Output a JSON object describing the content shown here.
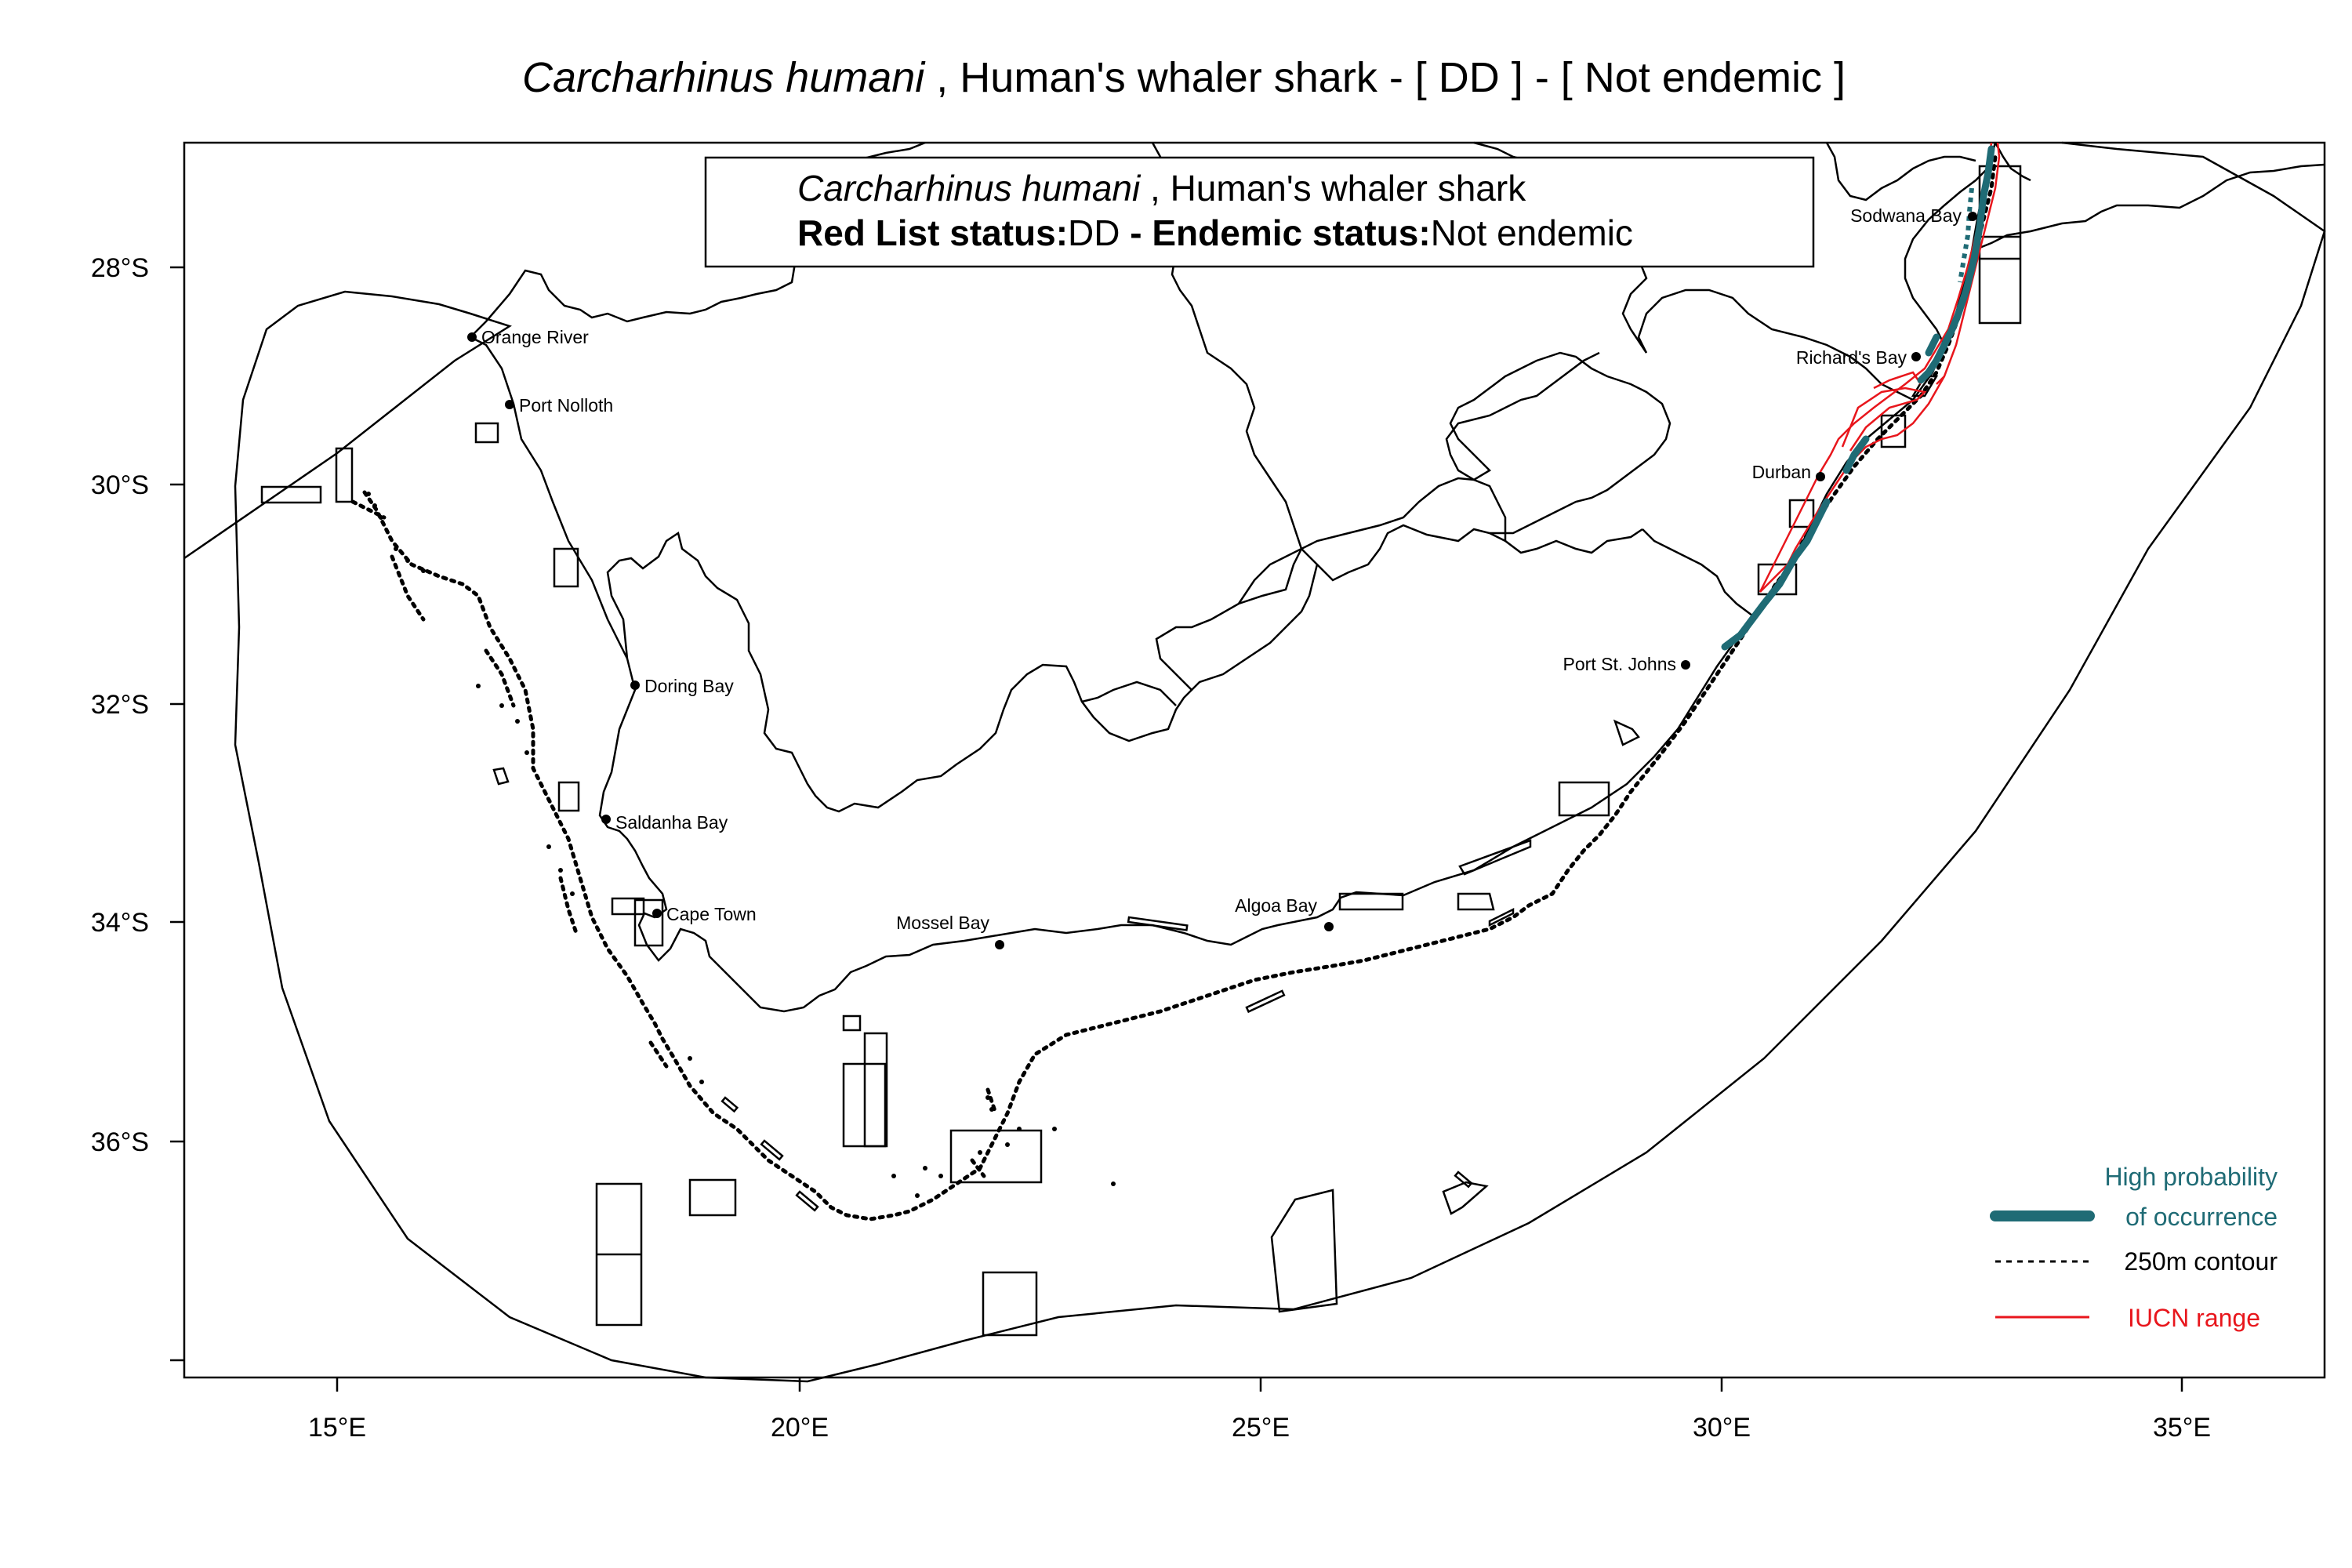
{
  "title": {
    "species": "Carcharhinus humani",
    "rest": " , Human's whaler shark  - [ DD ] - [ Not endemic ]"
  },
  "infobox": {
    "species": "Carcharhinus humani",
    "common": " , Human's whaler shark",
    "redlist_label": "Red List status:",
    "redlist_value": "DD",
    "endemic_label": " - Endemic status:",
    "endemic_value": "Not endemic"
  },
  "axes": {
    "x_ticks": [
      "15°E",
      "20°E",
      "25°E",
      "30°E",
      "35°E"
    ],
    "y_ticks": [
      "28°S",
      "30°S",
      "32°S",
      "34°S",
      "36°S"
    ]
  },
  "places": [
    {
      "name": "Orange River"
    },
    {
      "name": "Port Nolloth"
    },
    {
      "name": "Doring Bay"
    },
    {
      "name": "Saldanha Bay"
    },
    {
      "name": "Cape Town"
    },
    {
      "name": "Mossel Bay"
    },
    {
      "name": "Algoa Bay"
    },
    {
      "name": "Port St. Johns"
    },
    {
      "name": "Durban"
    },
    {
      "name": "Richard's Bay"
    },
    {
      "name": "Sodwana Bay"
    }
  ],
  "legend": {
    "high_prob_line1": "High probability",
    "high_prob_line2": "of occurrence",
    "contour": "250m contour",
    "iucn": "IUCN range"
  },
  "colors": {
    "high_probability": "#1f6b75",
    "iucn_range": "#e8161c",
    "line": "#000000"
  }
}
